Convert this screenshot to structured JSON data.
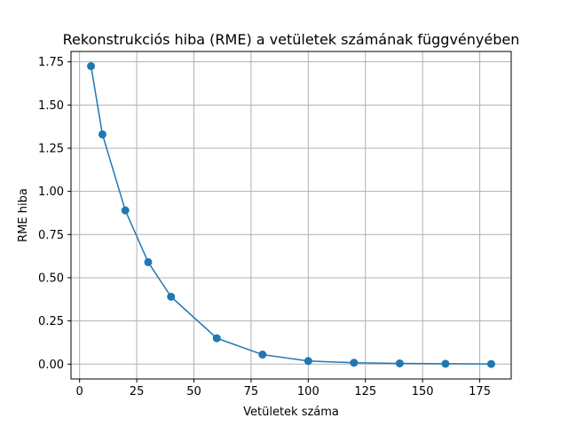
{
  "chart_data": {
    "type": "line",
    "title": "Rekonstrukciós hiba (RME) a vetületek számának függvényében",
    "xlabel": "Vetületek száma",
    "ylabel": "RME hiba",
    "xlim": [
      -3.75,
      188.75
    ],
    "ylim": [
      -0.086,
      1.81
    ],
    "xticks": [
      0,
      25,
      50,
      75,
      100,
      125,
      150,
      175
    ],
    "xtick_labels": [
      "0",
      "25",
      "50",
      "75",
      "100",
      "125",
      "150",
      "175"
    ],
    "yticks": [
      0.0,
      0.25,
      0.5,
      0.75,
      1.0,
      1.25,
      1.5,
      1.75
    ],
    "ytick_labels": [
      "0.00",
      "0.25",
      "0.50",
      "0.75",
      "1.00",
      "1.25",
      "1.50",
      "1.75"
    ],
    "grid": true,
    "marker": "circle",
    "color": "#1f77b4",
    "series": [
      {
        "x": [
          5,
          10,
          20,
          30,
          40,
          60,
          80,
          100,
          120,
          140,
          160,
          180
        ],
        "y": [
          1.725,
          1.33,
          0.89,
          0.59,
          0.39,
          0.15,
          0.055,
          0.018,
          0.008,
          0.004,
          0.002,
          0.001
        ]
      }
    ]
  }
}
